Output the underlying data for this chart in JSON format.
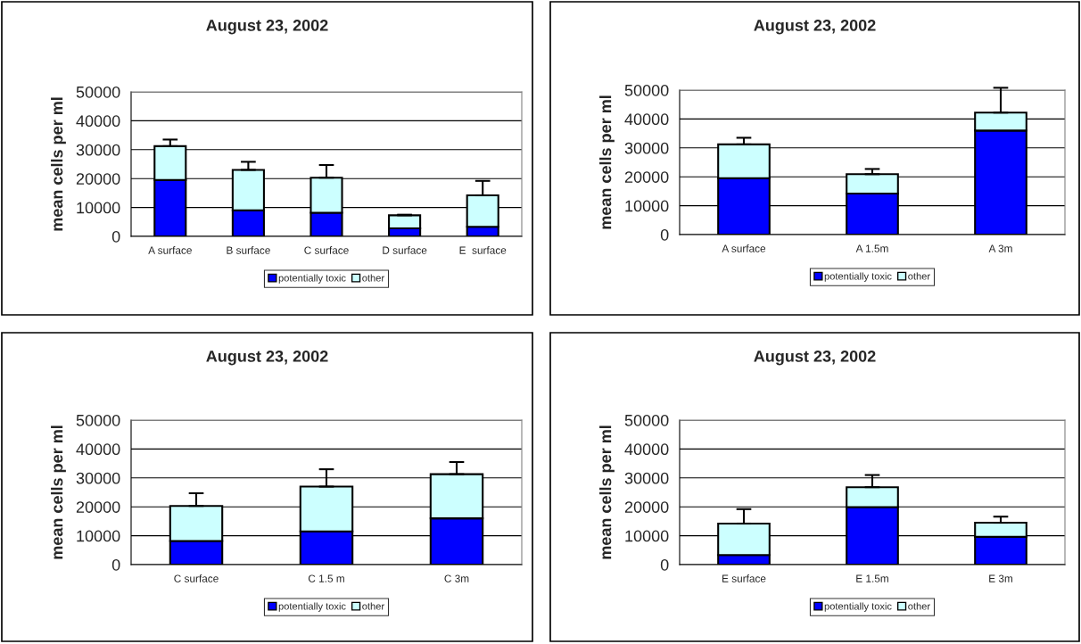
{
  "chart_data": [
    {
      "type": "bar",
      "title": "August 23, 2002",
      "ylabel": "mean cells per ml",
      "categories": [
        "A surface",
        "B surface",
        "C surface",
        "D surface",
        "E  surface"
      ],
      "stacked": true,
      "ylim": [
        0,
        50000
      ],
      "yticks": [
        0,
        10000,
        20000,
        30000,
        40000,
        50000
      ],
      "grid": "y",
      "legend": "bottom",
      "series": [
        {
          "name": "potentially toxic",
          "color": "#0000ff",
          "values": [
            19500,
            9000,
            8200,
            2800,
            3300
          ]
        },
        {
          "name": "other",
          "color": "#ccffff",
          "values": [
            11700,
            14000,
            12100,
            4500,
            10900
          ],
          "errors": [
            [
              31200,
              33500
            ],
            [
              23000,
              25800
            ],
            [
              20300,
              24700
            ],
            [
              7300,
              7500
            ],
            [
              14200,
              19200
            ]
          ]
        }
      ]
    },
    {
      "type": "bar",
      "title": "August 23, 2002",
      "ylabel": "mean cells per ml",
      "categories": [
        "A surface",
        "A 1.5m",
        "A 3m"
      ],
      "stacked": true,
      "ylim": [
        0,
        50000
      ],
      "yticks": [
        0,
        10000,
        20000,
        30000,
        40000,
        50000
      ],
      "grid": "y",
      "legend": "bottom",
      "series": [
        {
          "name": "potentially toxic",
          "color": "#0000ff",
          "values": [
            19500,
            14200,
            36000
          ]
        },
        {
          "name": "other",
          "color": "#ccffff",
          "values": [
            11700,
            6700,
            6200
          ],
          "errors": [
            [
              31200,
              33500
            ],
            [
              20900,
              22700
            ],
            [
              42200,
              50800
            ]
          ]
        }
      ]
    },
    {
      "type": "bar",
      "title": "August 23, 2002",
      "ylabel": "mean cells per ml",
      "categories": [
        "C surface",
        "C 1.5 m",
        "C 3m"
      ],
      "stacked": true,
      "ylim": [
        0,
        50000
      ],
      "yticks": [
        0,
        10000,
        20000,
        30000,
        40000,
        50000
      ],
      "grid": "y",
      "legend": "bottom",
      "series": [
        {
          "name": "potentially toxic",
          "color": "#0000ff",
          "values": [
            8200,
            11500,
            16000
          ]
        },
        {
          "name": "other",
          "color": "#ccffff",
          "values": [
            12100,
            15500,
            15300
          ],
          "errors": [
            [
              20300,
              24700
            ],
            [
              27000,
              33000
            ],
            [
              31300,
              35500
            ]
          ]
        }
      ]
    },
    {
      "type": "bar",
      "title": "August 23, 2002",
      "ylabel": "mean cells per ml",
      "categories": [
        "E surface",
        "E 1.5m",
        "E 3m"
      ],
      "stacked": true,
      "ylim": [
        0,
        50000
      ],
      "yticks": [
        0,
        10000,
        20000,
        30000,
        40000,
        50000
      ],
      "grid": "y",
      "legend": "bottom",
      "series": [
        {
          "name": "potentially toxic",
          "color": "#0000ff",
          "values": [
            3300,
            19900,
            9600
          ]
        },
        {
          "name": "other",
          "color": "#ccffff",
          "values": [
            10900,
            6900,
            4900
          ],
          "errors": [
            [
              14200,
              19200
            ],
            [
              26800,
              31000
            ],
            [
              14500,
              16600
            ]
          ]
        }
      ]
    }
  ]
}
